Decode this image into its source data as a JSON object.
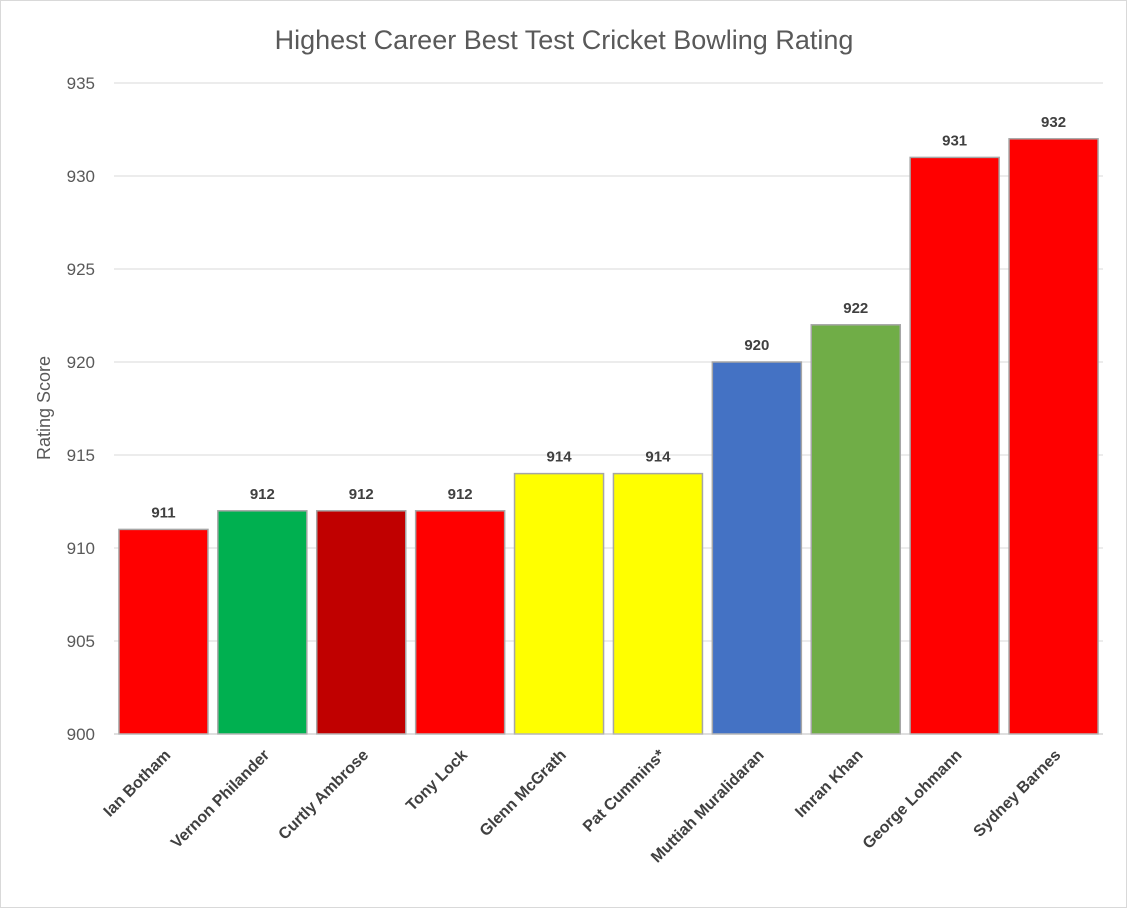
{
  "chart_data": {
    "type": "bar",
    "title": "Highest Career Best Test Cricket Bowling Rating",
    "xlabel": "",
    "ylabel": "Rating Score",
    "ylim": [
      900,
      935
    ],
    "yticks": [
      900,
      905,
      910,
      915,
      920,
      925,
      930,
      935
    ],
    "grid": true,
    "legend": "none",
    "categories": [
      "Ian Botham",
      "Vernon Philander",
      "Curtly Ambrose",
      "Tony Lock",
      "Glenn McGrath",
      "Pat Cummins*",
      "Muttiah Muralidaran",
      "Imran Khan",
      "George Lohmann",
      "Sydney Barnes"
    ],
    "values": [
      911,
      912,
      912,
      912,
      914,
      914,
      920,
      922,
      931,
      932
    ],
    "colors": [
      "#ff0000",
      "#00b050",
      "#c00000",
      "#ff0000",
      "#ffff00",
      "#ffff00",
      "#4472c4",
      "#70ad47",
      "#ff0000",
      "#ff0000"
    ]
  }
}
